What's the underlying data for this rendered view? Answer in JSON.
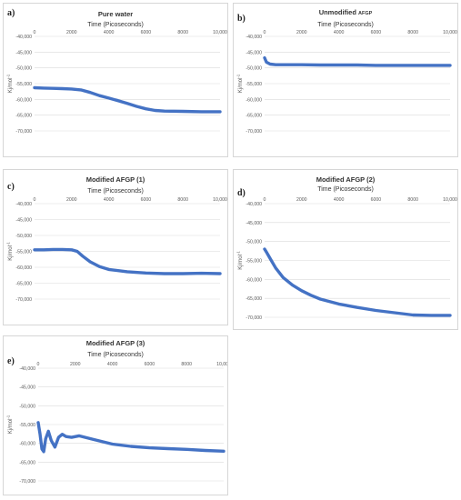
{
  "panels": [
    {
      "letter": "a)",
      "title": "Pure water",
      "title_suffix": ""
    },
    {
      "letter": "b)",
      "title": "Unmodified ",
      "title_suffix": "AFGP"
    },
    {
      "letter": "c)",
      "title": "Modified AFGP (1)",
      "title_suffix": ""
    },
    {
      "letter": "d)",
      "title": "Modified AFGP (2)",
      "title_suffix": ""
    },
    {
      "letter": "e)",
      "title": "Modified AFGP (3)",
      "title_suffix": ""
    }
  ],
  "colors": {
    "series": "#4472c4",
    "grid": "#d9d9d9",
    "text": "#595959"
  },
  "chart_data": [
    {
      "type": "line",
      "title": "Pure water",
      "xlabel": "Time (Picoseconds)",
      "ylabel": "Kj/mol^-1",
      "xlim": [
        0,
        10000
      ],
      "ylim": [
        -70000,
        -40000
      ],
      "xticks": [
        "0",
        "2000",
        "4000",
        "6000",
        "8000",
        "10,000"
      ],
      "yticks": [
        "-40,000",
        "-45,000",
        "-50,000",
        "-55,000",
        "-60,000",
        "-65,000",
        "-70,000"
      ],
      "x": [
        0,
        500,
        1000,
        1500,
        2000,
        2500,
        3000,
        3500,
        4000,
        4500,
        5000,
        5500,
        6000,
        6500,
        7000,
        8000,
        9000,
        10000
      ],
      "y": [
        -56300,
        -56400,
        -56500,
        -56600,
        -56700,
        -57000,
        -57800,
        -58800,
        -59600,
        -60400,
        -61300,
        -62200,
        -63000,
        -63500,
        -63700,
        -63800,
        -63900,
        -63900
      ]
    },
    {
      "type": "line",
      "title": "Unmodified AFGP",
      "xlabel": "Time (Picoseconds)",
      "ylabel": "Kj/mol^-1",
      "xlim": [
        0,
        10000
      ],
      "ylim": [
        -70000,
        -40000
      ],
      "xticks": [
        "0",
        "2000",
        "4000",
        "6000",
        "8000",
        "10,000"
      ],
      "yticks": [
        "-40,000",
        "-45,000",
        "-50,000",
        "-55,000",
        "-60,000",
        "-65,000",
        "-70,000"
      ],
      "x": [
        0,
        100,
        300,
        600,
        1000,
        2000,
        3000,
        4000,
        5000,
        6000,
        7000,
        8000,
        9000,
        10000
      ],
      "y": [
        -46800,
        -48200,
        -48800,
        -49000,
        -49000,
        -49000,
        -49100,
        -49100,
        -49100,
        -49200,
        -49200,
        -49200,
        -49200,
        -49200
      ]
    },
    {
      "type": "line",
      "title": "Modified AFGP (1)",
      "xlabel": "Time (Picoseconds)",
      "ylabel": "Kj/mol^-1",
      "xlim": [
        0,
        10000
      ],
      "ylim": [
        -70000,
        -40000
      ],
      "xticks": [
        "0",
        "2000",
        "4000",
        "6000",
        "8000",
        "10,000"
      ],
      "yticks": [
        "-40,000",
        "-45,000",
        "-50,000",
        "-55,000",
        "-60,000",
        "-65,000",
        "-70,000"
      ],
      "x": [
        0,
        500,
        1000,
        1500,
        2000,
        2300,
        2600,
        3000,
        3500,
        4000,
        5000,
        6000,
        7000,
        8000,
        9000,
        10000
      ],
      "y": [
        -54500,
        -54500,
        -54400,
        -54400,
        -54500,
        -55000,
        -56500,
        -58300,
        -59800,
        -60700,
        -61400,
        -61800,
        -62000,
        -62000,
        -61900,
        -62000
      ]
    },
    {
      "type": "line",
      "title": "Modified AFGP (2)",
      "xlabel": "Time (Picoseconds)",
      "ylabel": "Kj/mol^-1",
      "xlim": [
        0,
        10000
      ],
      "ylim": [
        -70000,
        -40000
      ],
      "xticks": [
        "0",
        "2000",
        "4000",
        "6000",
        "8000",
        "10,000"
      ],
      "yticks": [
        "-40,000",
        "-45,000",
        "-50,000",
        "-55,000",
        "-60,000",
        "-65,000",
        "-70,000"
      ],
      "x": [
        0,
        100,
        300,
        600,
        1000,
        1500,
        2000,
        2500,
        3000,
        4000,
        5000,
        6000,
        7000,
        8000,
        9000,
        10000
      ],
      "y": [
        -52000,
        -52800,
        -54500,
        -57000,
        -59500,
        -61500,
        -63000,
        -64200,
        -65200,
        -66500,
        -67400,
        -68200,
        -68800,
        -69400,
        -69500,
        -69500
      ]
    },
    {
      "type": "line",
      "title": "Modified AFGP (3)",
      "xlabel": "Time (Picoseconds)",
      "ylabel": "Kj/mol^-1",
      "xlim": [
        0,
        10000
      ],
      "ylim": [
        -70000,
        -40000
      ],
      "xticks": [
        "0",
        "2000",
        "4000",
        "6000",
        "8000",
        "10,000"
      ],
      "yticks": [
        "-40,000",
        "-45,000",
        "-50,000",
        "-55,000",
        "-60,000",
        "-65,000",
        "-70,000"
      ],
      "x": [
        0,
        100,
        200,
        300,
        400,
        550,
        700,
        900,
        1100,
        1300,
        1500,
        1800,
        2200,
        3000,
        4000,
        5000,
        6000,
        7000,
        8000,
        9000,
        10000
      ],
      "y": [
        -54500,
        -57500,
        -61500,
        -62200,
        -58800,
        -56800,
        -59200,
        -61000,
        -58400,
        -57600,
        -58200,
        -58400,
        -58000,
        -59000,
        -60200,
        -60800,
        -61200,
        -61400,
        -61600,
        -61900,
        -62100
      ]
    }
  ]
}
